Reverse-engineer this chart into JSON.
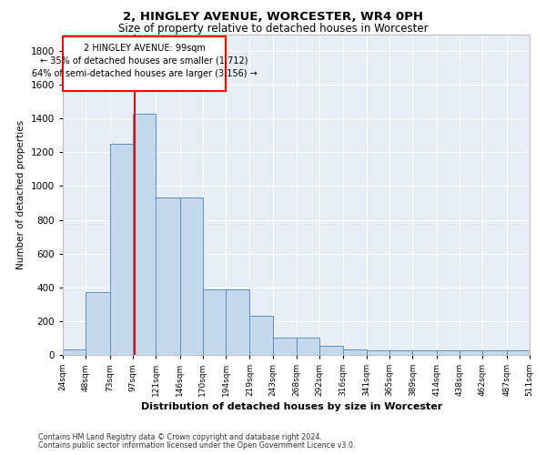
{
  "title1": "2, HINGLEY AVENUE, WORCESTER, WR4 0PH",
  "title2": "Size of property relative to detached houses in Worcester",
  "xlabel": "Distribution of detached houses by size in Worcester",
  "ylabel": "Number of detached properties",
  "footnote1": "Contains HM Land Registry data © Crown copyright and database right 2024.",
  "footnote2": "Contains public sector information licensed under the Open Government Licence v3.0.",
  "annotation_line1": "2 HINGLEY AVENUE: 99sqm",
  "annotation_line2": "← 35% of detached houses are smaller (1,712)",
  "annotation_line3": "64% of semi-detached houses are larger (3,156) →",
  "bin_edges": [
    24,
    48,
    73,
    97,
    121,
    146,
    170,
    194,
    219,
    243,
    268,
    292,
    316,
    341,
    365,
    389,
    414,
    438,
    462,
    487,
    511
  ],
  "bar_heights": [
    30,
    370,
    1250,
    1430,
    930,
    930,
    390,
    390,
    230,
    100,
    100,
    55,
    30,
    25,
    25,
    25,
    25,
    25,
    25,
    25
  ],
  "bar_color": "#c5d8ee",
  "bar_edge_color": "#5a90c0",
  "vline_color": "red",
  "vline_x": 99,
  "bg_color": "#e8eef5",
  "ylim": [
    0,
    1900
  ],
  "yticks": [
    0,
    200,
    400,
    600,
    800,
    1000,
    1200,
    1400,
    1600,
    1800
  ]
}
